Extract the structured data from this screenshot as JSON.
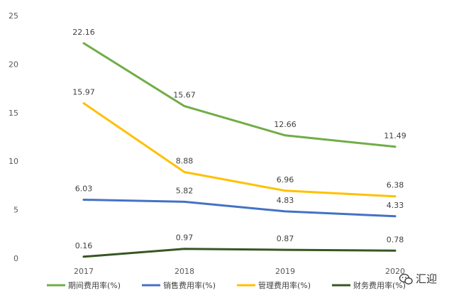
{
  "chart_data": {
    "type": "line",
    "x": [
      "2017",
      "2018",
      "2019",
      "2020"
    ],
    "ylim": [
      0,
      25
    ],
    "yticks": [
      0,
      5,
      10,
      15,
      20,
      25
    ],
    "grid": false,
    "legend": "bottom",
    "series": [
      {
        "name": "期间费用率(%)",
        "color": "#70AD47",
        "values": [
          22.16,
          15.67,
          12.66,
          11.49
        ]
      },
      {
        "name": "销售费用率(%)",
        "color": "#4472C4",
        "values": [
          6.03,
          5.82,
          4.83,
          4.33
        ]
      },
      {
        "name": "管理费用率(%)",
        "color": "#FFC000",
        "values": [
          15.97,
          8.88,
          6.96,
          6.38
        ]
      },
      {
        "name": "财务费用率(%)",
        "color": "#375623",
        "values": [
          0.16,
          0.97,
          0.87,
          0.78
        ]
      }
    ]
  },
  "watermark": {
    "text": "汇迎",
    "icon": "wechat-icon"
  }
}
